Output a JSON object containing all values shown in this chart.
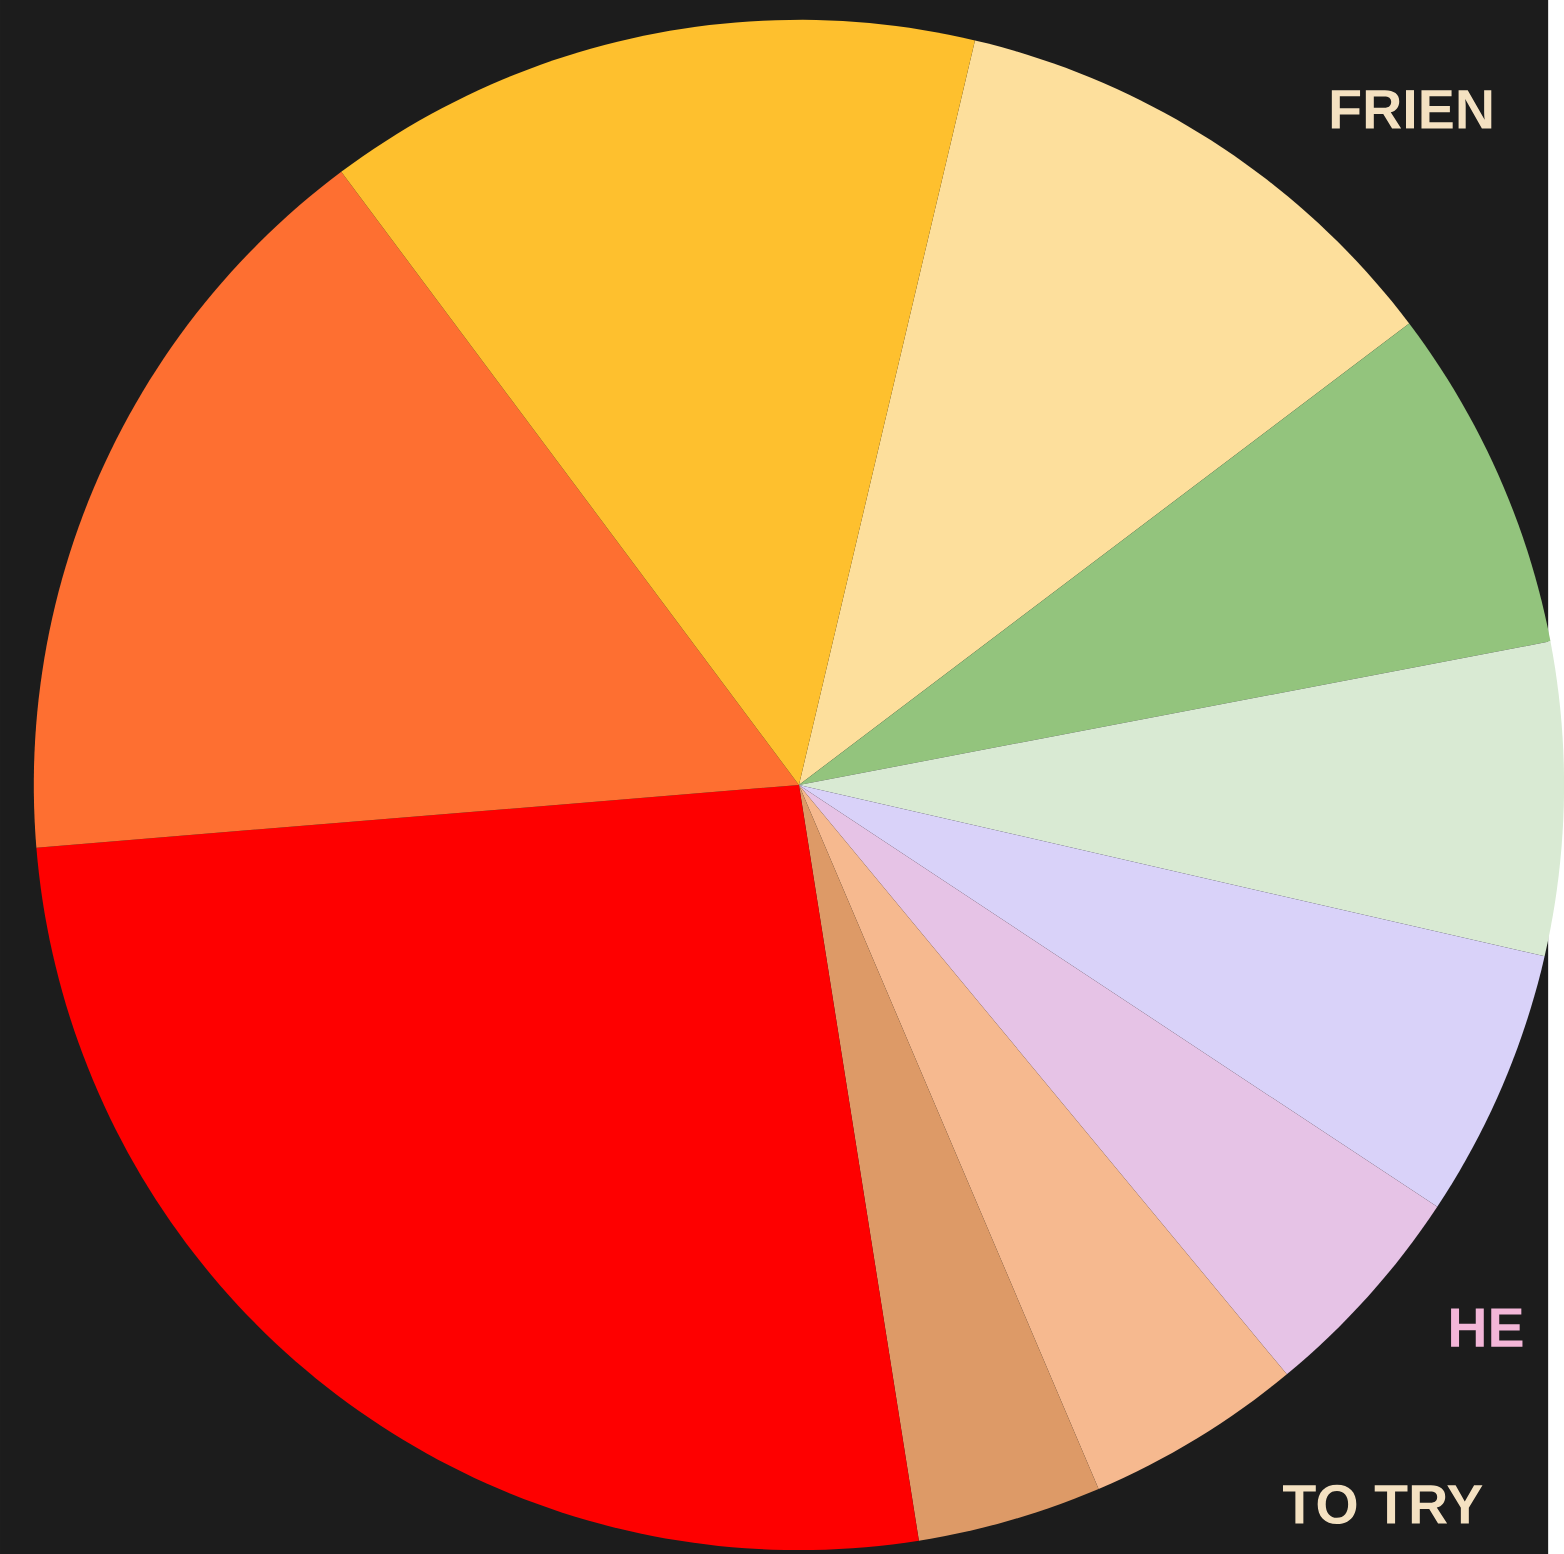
{
  "chart_data": {
    "type": "pie",
    "categories": [
      null,
      null,
      null,
      null,
      null,
      null,
      null,
      null,
      null,
      null
    ],
    "values": [
      11.0,
      7.3,
      6.6,
      5.7,
      4.7,
      4.6,
      3.9,
      26.2,
      16.1,
      13.9
    ],
    "colors": [
      "#fddf9c",
      "#93c47d",
      "#d9ead3",
      "#d9d2f9",
      "#e6c3e6",
      "#f6b98f",
      "#dd9a67",
      "#fe0000",
      "#fe6f31",
      "#fec02e"
    ],
    "annotations": [
      "FRIEN",
      "HE",
      "TO TRY"
    ]
  }
}
